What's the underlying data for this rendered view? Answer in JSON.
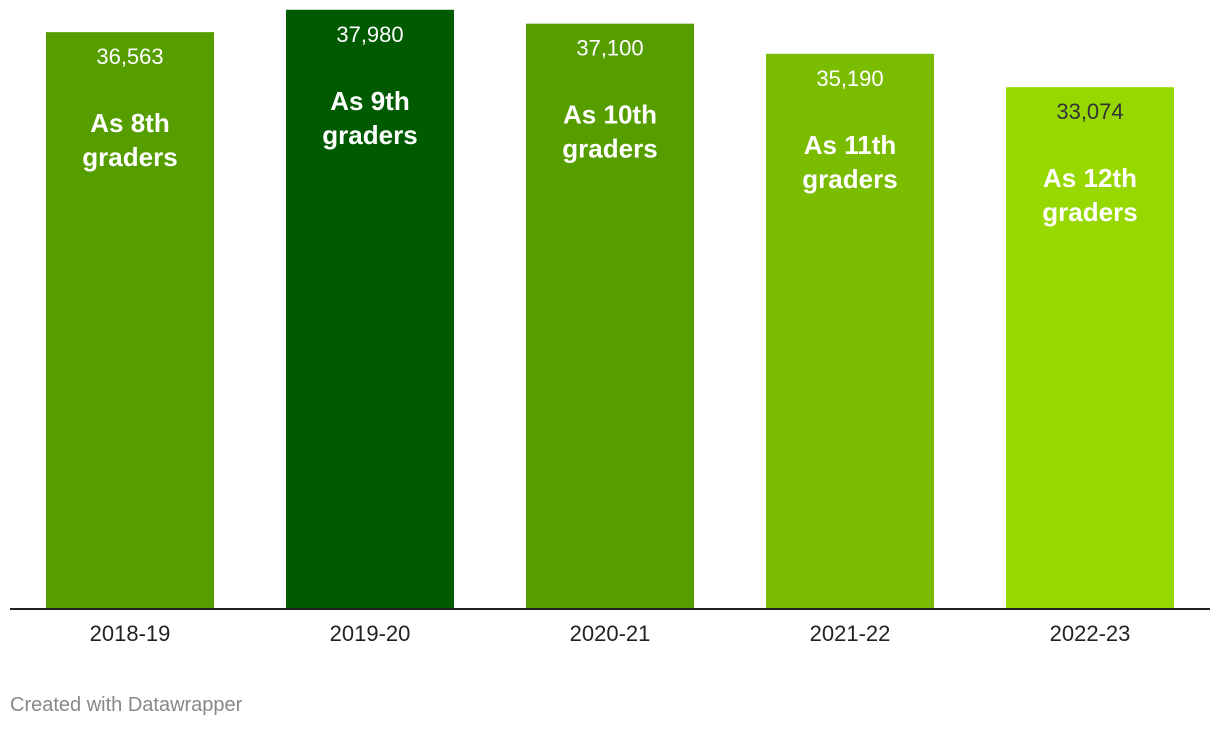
{
  "chart_data": {
    "type": "bar",
    "title": "",
    "xlabel": "",
    "ylabel": "",
    "ylim": [
      0,
      38600
    ],
    "grid": false,
    "categories": [
      "2018-19",
      "2019-20",
      "2020-21",
      "2021-22",
      "2022-23"
    ],
    "values": [
      36563,
      37980,
      37100,
      35190,
      33074
    ],
    "value_labels": [
      "36,563",
      "37,980",
      "37,100",
      "35,190",
      "33,074"
    ],
    "bar_annotations": [
      [
        "As 8th",
        "graders"
      ],
      [
        "As 9th",
        "graders"
      ],
      [
        "As 10th",
        "graders"
      ],
      [
        "As 11th",
        "graders"
      ],
      [
        "As 12th",
        "graders"
      ]
    ],
    "bar_colors": [
      "#569e00",
      "#005a00",
      "#569e00",
      "#7abc00",
      "#96d800"
    ],
    "value_label_colors": [
      "#ffffff",
      "#ffffff",
      "#ffffff",
      "#ffffff",
      "#333333"
    ]
  },
  "footer": {
    "credit": "Created with Datawrapper"
  }
}
